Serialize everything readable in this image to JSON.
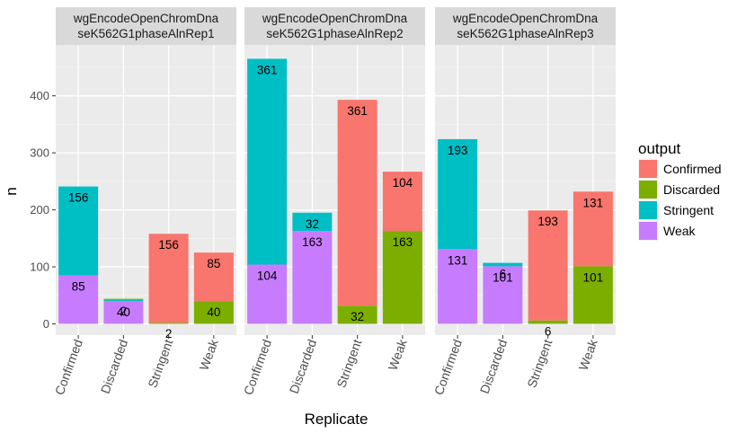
{
  "chart_data": {
    "type": "bar",
    "stacked": true,
    "xlabel": "Replicate",
    "ylabel": "n",
    "ylim": [
      -25,
      480
    ],
    "yticks": [
      0,
      100,
      200,
      300,
      400
    ],
    "categories": [
      "Confirmed",
      "Discarded",
      "Stringent",
      "Weak"
    ],
    "legend": {
      "title": "output",
      "position": "right",
      "entries": [
        {
          "name": "Confirmed",
          "color": "#F8766D"
        },
        {
          "name": "Discarded",
          "color": "#7CAE00"
        },
        {
          "name": "Stringent",
          "color": "#00BFC4"
        },
        {
          "name": "Weak",
          "color": "#C77CFF"
        }
      ]
    },
    "panels": [
      {
        "title_line1": "wgEncodeOpenChromDna",
        "title_line2": "seK562G1phaseAlnRep1",
        "bars": [
          {
            "category": "Confirmed",
            "segments": [
              {
                "output": "Weak",
                "value": 85,
                "label": "85"
              },
              {
                "output": "Stringent",
                "value": 156,
                "label": "156"
              }
            ]
          },
          {
            "category": "Discarded",
            "segments": [
              {
                "output": "Weak",
                "value": 40,
                "label": "40"
              },
              {
                "output": "Stringent",
                "value": 2,
                "label": "2"
              },
              {
                "output": "Discarded",
                "value": 2,
                "label": ""
              }
            ]
          },
          {
            "category": "Stringent",
            "segments": [
              {
                "output": "Discarded",
                "value": 2,
                "label": "2"
              },
              {
                "output": "Confirmed",
                "value": 156,
                "label": "156"
              }
            ]
          },
          {
            "category": "Weak",
            "segments": [
              {
                "output": "Discarded",
                "value": 40,
                "label": "40"
              },
              {
                "output": "Confirmed",
                "value": 85,
                "label": "85"
              }
            ]
          }
        ]
      },
      {
        "title_line1": "wgEncodeOpenChromDna",
        "title_line2": "seK562G1phaseAlnRep2",
        "bars": [
          {
            "category": "Confirmed",
            "segments": [
              {
                "output": "Weak",
                "value": 104,
                "label": "104"
              },
              {
                "output": "Stringent",
                "value": 361,
                "label": "361"
              }
            ]
          },
          {
            "category": "Discarded",
            "segments": [
              {
                "output": "Weak",
                "value": 163,
                "label": "163"
              },
              {
                "output": "Stringent",
                "value": 32,
                "label": "32"
              }
            ]
          },
          {
            "category": "Stringent",
            "segments": [
              {
                "output": "Discarded",
                "value": 32,
                "label": "32"
              },
              {
                "output": "Confirmed",
                "value": 361,
                "label": "361"
              }
            ]
          },
          {
            "category": "Weak",
            "segments": [
              {
                "output": "Discarded",
                "value": 163,
                "label": "163"
              },
              {
                "output": "Confirmed",
                "value": 104,
                "label": "104"
              }
            ]
          }
        ]
      },
      {
        "title_line1": "wgEncodeOpenChromDna",
        "title_line2": "seK562G1phaseAlnRep3",
        "bars": [
          {
            "category": "Confirmed",
            "segments": [
              {
                "output": "Weak",
                "value": 131,
                "label": "131"
              },
              {
                "output": "Stringent",
                "value": 193,
                "label": "193"
              }
            ]
          },
          {
            "category": "Discarded",
            "segments": [
              {
                "output": "Weak",
                "value": 101,
                "label": "101"
              },
              {
                "output": "Stringent",
                "value": 6,
                "label": "6"
              }
            ]
          },
          {
            "category": "Stringent",
            "segments": [
              {
                "output": "Discarded",
                "value": 6,
                "label": "6"
              },
              {
                "output": "Confirmed",
                "value": 193,
                "label": "193"
              }
            ]
          },
          {
            "category": "Weak",
            "segments": [
              {
                "output": "Discarded",
                "value": 101,
                "label": "101"
              },
              {
                "output": "Confirmed",
                "value": 131,
                "label": "131"
              }
            ]
          }
        ]
      }
    ]
  }
}
